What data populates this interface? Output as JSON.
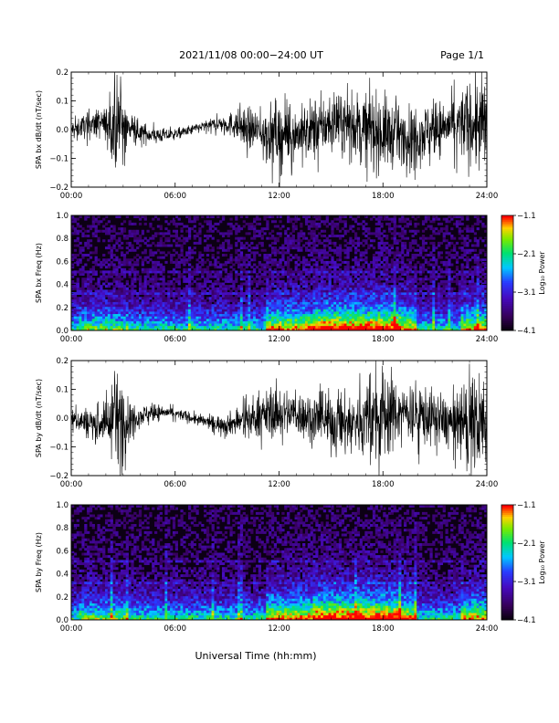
{
  "header": {
    "date_range": "2021/11/08  00:00−24:00 UT",
    "page": "Page 1/1"
  },
  "x_axis_title": "Universal Time (hh:mm)",
  "x_tick_labels": [
    "00:00",
    "06:00",
    "12:00",
    "18:00",
    "24:00"
  ],
  "colors": {
    "trace": "#000000",
    "background": "#ffffff"
  },
  "chart_data": [
    {
      "type": "line",
      "name": "bx-waveform",
      "title": "",
      "ylabel": "SPA bx dB/dt (nT/sec)",
      "xlabel": "",
      "x_range_hours": [
        0,
        24
      ],
      "ylim": [
        -0.2,
        0.2
      ],
      "y_ticks": [
        -0.2,
        -0.1,
        0.0,
        0.1,
        0.2
      ],
      "y_tick_labels": [
        "−0.2",
        "−0.1",
        "0.0",
        "0.1",
        "0.2"
      ],
      "amplitude_envelope": {
        "hours": [
          0,
          1,
          2,
          2.9,
          3.3,
          4,
          6,
          8,
          9,
          10,
          11,
          12,
          13,
          14,
          15,
          16,
          17,
          18,
          19,
          20,
          21,
          22,
          23,
          24
        ],
        "amplitude": [
          0.03,
          0.05,
          0.06,
          0.2,
          0.05,
          0.04,
          0.02,
          0.02,
          0.04,
          0.07,
          0.09,
          0.13,
          0.09,
          0.12,
          0.1,
          0.11,
          0.13,
          0.15,
          0.1,
          0.12,
          0.1,
          0.1,
          0.16,
          0.2
        ]
      }
    },
    {
      "type": "heatmap",
      "name": "bx-spectrogram",
      "title": "",
      "ylabel": "SPA bx Freq (Hz)",
      "xlabel": "",
      "x_range_hours": [
        0,
        24
      ],
      "ylim": [
        0.0,
        1.0
      ],
      "y_ticks": [
        0.0,
        0.2,
        0.4,
        0.6,
        0.8,
        1.0
      ],
      "y_tick_labels": [
        "0.0",
        "0.2",
        "0.4",
        "0.6",
        "0.8",
        "1.0"
      ],
      "colorbar": {
        "label": "Log₁₀ Power",
        "range": [
          -4.1,
          -1.1
        ],
        "ticks": [
          -4.1,
          -3.1,
          -2.1,
          -1.1
        ],
        "tick_labels": [
          "−4.1",
          "−3.1",
          "−2.1",
          "−1.1"
        ]
      }
    },
    {
      "type": "line",
      "name": "by-waveform",
      "title": "",
      "ylabel": "SPA by dB/dt (nT/sec)",
      "xlabel": "",
      "x_range_hours": [
        0,
        24
      ],
      "ylim": [
        -0.2,
        0.2
      ],
      "y_ticks": [
        -0.2,
        -0.1,
        0.0,
        0.1,
        0.2
      ],
      "y_tick_labels": [
        "−0.2",
        "−0.1",
        "0.0",
        "0.1",
        "0.2"
      ],
      "amplitude_envelope": {
        "hours": [
          0,
          1,
          2,
          2.9,
          3.3,
          4,
          6,
          8,
          9,
          10,
          11,
          12,
          13,
          14,
          15,
          16,
          17,
          18,
          19,
          20,
          21,
          22,
          23,
          24
        ],
        "amplitude": [
          0.03,
          0.06,
          0.08,
          0.2,
          0.07,
          0.04,
          0.02,
          0.025,
          0.04,
          0.06,
          0.08,
          0.1,
          0.08,
          0.1,
          0.11,
          0.12,
          0.12,
          0.2,
          0.1,
          0.12,
          0.1,
          0.1,
          0.15,
          0.2
        ]
      }
    },
    {
      "type": "heatmap",
      "name": "by-spectrogram",
      "title": "",
      "ylabel": "SPA by Freq (Hz)",
      "xlabel": "",
      "x_range_hours": [
        0,
        24
      ],
      "ylim": [
        0.0,
        1.0
      ],
      "y_ticks": [
        0.0,
        0.2,
        0.4,
        0.6,
        0.8,
        1.0
      ],
      "y_tick_labels": [
        "0.0",
        "0.2",
        "0.4",
        "0.6",
        "0.8",
        "1.0"
      ],
      "colorbar": {
        "label": "Log₁₀ Power",
        "range": [
          -4.1,
          -1.1
        ],
        "ticks": [
          -4.1,
          -3.1,
          -2.1,
          -1.1
        ],
        "tick_labels": [
          "−4.1",
          "−3.1",
          "−2.1",
          "−1.1"
        ]
      }
    }
  ]
}
